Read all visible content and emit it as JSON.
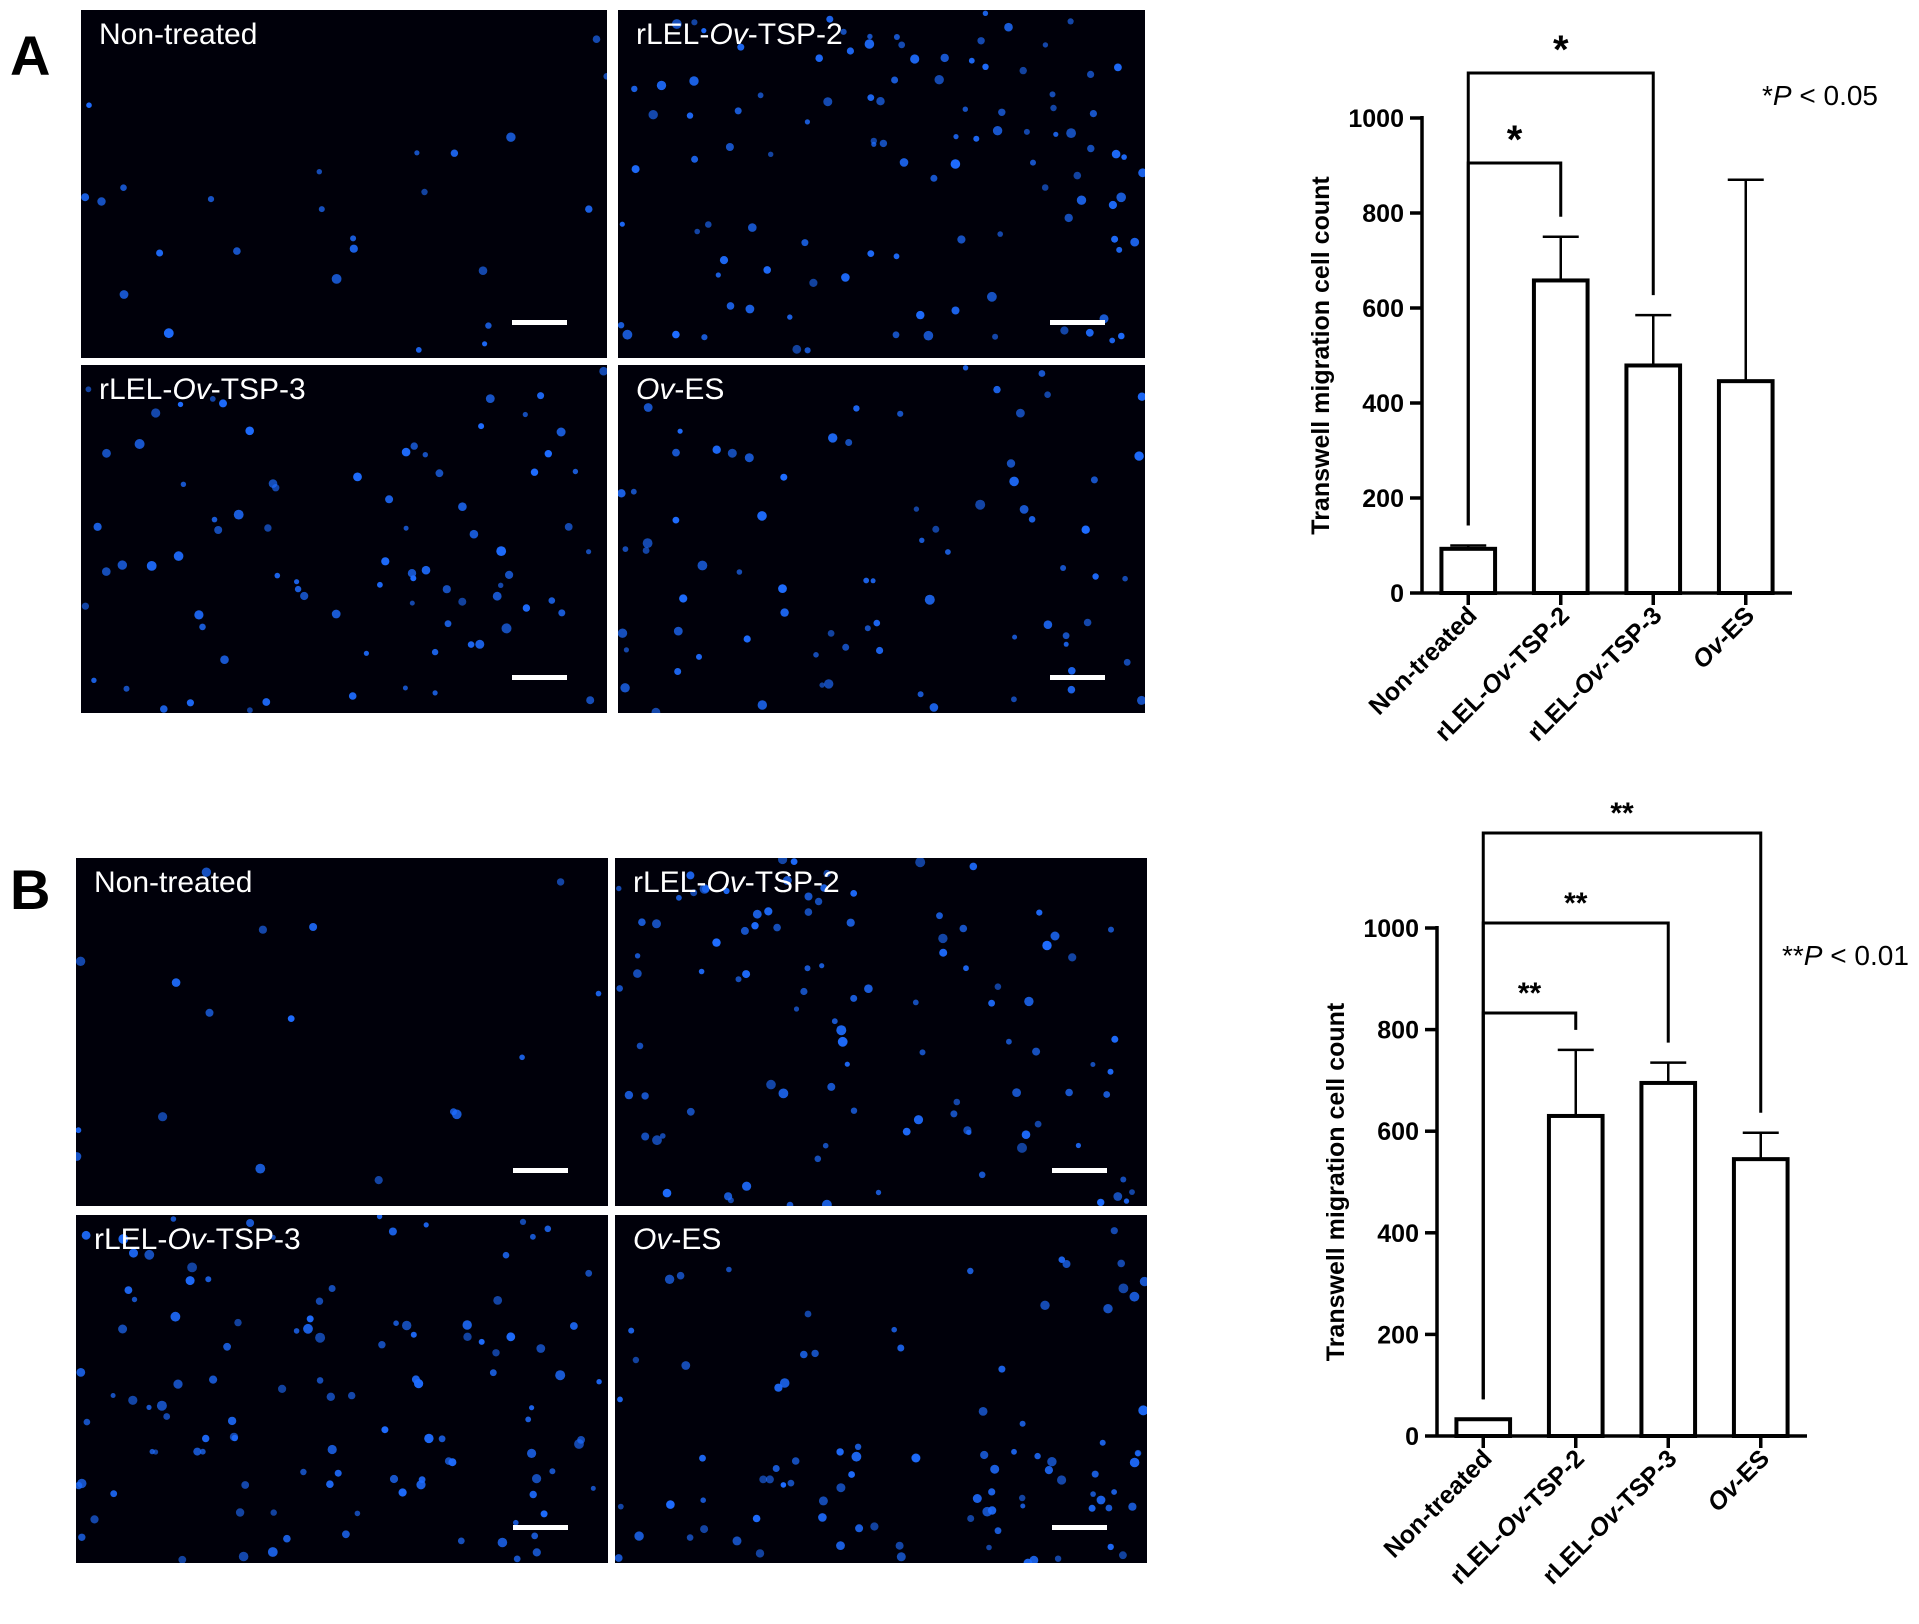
{
  "panels": [
    {
      "letter": "A",
      "images": [
        {
          "label_parts": [
            [
              "Non-treated",
              false
            ]
          ]
        },
        {
          "label_parts": [
            [
              "rLEL-",
              false
            ],
            [
              "Ov",
              true
            ],
            [
              "-TSP-2",
              false
            ]
          ]
        },
        {
          "label_parts": [
            [
              "rLEL-",
              false
            ],
            [
              "Ov",
              true
            ],
            [
              "-TSP-3",
              false
            ]
          ]
        },
        {
          "label_parts": [
            [
              "Ov",
              true
            ],
            [
              "-ES",
              false
            ]
          ]
        }
      ],
      "p_note_parts": [
        [
          "*",
          false
        ],
        [
          "P",
          true
        ],
        [
          " < 0.05",
          false
        ]
      ]
    },
    {
      "letter": "B",
      "images": [
        {
          "label_parts": [
            [
              "Non-treated",
              false
            ]
          ]
        },
        {
          "label_parts": [
            [
              "rLEL-",
              false
            ],
            [
              "Ov",
              true
            ],
            [
              "-TSP-2",
              false
            ]
          ]
        },
        {
          "label_parts": [
            [
              "rLEL-",
              false
            ],
            [
              "Ov",
              true
            ],
            [
              "-TSP-3",
              false
            ]
          ]
        },
        {
          "label_parts": [
            [
              "Ov",
              true
            ],
            [
              "-ES",
              false
            ]
          ]
        }
      ],
      "p_note_parts": [
        [
          "**",
          false
        ],
        [
          "P",
          true
        ],
        [
          " < 0.01",
          false
        ]
      ]
    }
  ],
  "chart_data": [
    {
      "type": "bar",
      "panel": "A",
      "categories": [
        "Non-treated",
        "rLEL-Ov-TSP-2",
        "rLEL-Ov-TSP-3",
        "Ov-ES"
      ],
      "category_label_parts": [
        [
          [
            "Non-treated",
            false
          ]
        ],
        [
          [
            "rLEL-",
            false
          ],
          [
            "Ov",
            true
          ],
          [
            "-TSP-2",
            false
          ]
        ],
        [
          [
            "rLEL-",
            false
          ],
          [
            "Ov",
            true
          ],
          [
            "-TSP-3",
            false
          ]
        ],
        [
          [
            "Ov",
            true
          ],
          [
            "-ES",
            false
          ]
        ]
      ],
      "values": [
        93,
        658,
        479,
        446
      ],
      "error_upper": [
        100,
        750,
        585,
        870
      ],
      "ylabel": "Transwell migration cell count",
      "ylim": [
        0,
        1000
      ],
      "yticks": [
        0,
        200,
        400,
        600,
        800,
        1000
      ],
      "significance": [
        {
          "from": 0,
          "to": 1,
          "label": "*"
        },
        {
          "from": 0,
          "to": 2,
          "label": "*"
        }
      ]
    },
    {
      "type": "bar",
      "panel": "B",
      "categories": [
        "Non-treated",
        "rLEL-Ov-TSP-2",
        "rLEL-Ov-TSP-3",
        "Ov-ES"
      ],
      "category_label_parts": [
        [
          [
            "Non-treated",
            false
          ]
        ],
        [
          [
            "rLEL-",
            false
          ],
          [
            "Ov",
            true
          ],
          [
            "-TSP-2",
            false
          ]
        ],
        [
          [
            "rLEL-",
            false
          ],
          [
            "Ov",
            true
          ],
          [
            "-TSP-3",
            false
          ]
        ],
        [
          [
            "Ov",
            true
          ],
          [
            "-ES",
            false
          ]
        ]
      ],
      "values": [
        33,
        630,
        695,
        545
      ],
      "error_upper": [
        33,
        760,
        735,
        597
      ],
      "ylabel": "Transwell migration cell count",
      "ylim": [
        0,
        1000
      ],
      "yticks": [
        0,
        200,
        400,
        600,
        800,
        1000
      ],
      "significance": [
        {
          "from": 0,
          "to": 1,
          "label": "**"
        },
        {
          "from": 0,
          "to": 2,
          "label": "**"
        },
        {
          "from": 0,
          "to": 3,
          "label": "**"
        }
      ]
    }
  ],
  "colors": {
    "micro_background": "#00000a",
    "nuclei": "#1e6cff",
    "bar_fill": "#ffffff",
    "ink": "#000000"
  }
}
